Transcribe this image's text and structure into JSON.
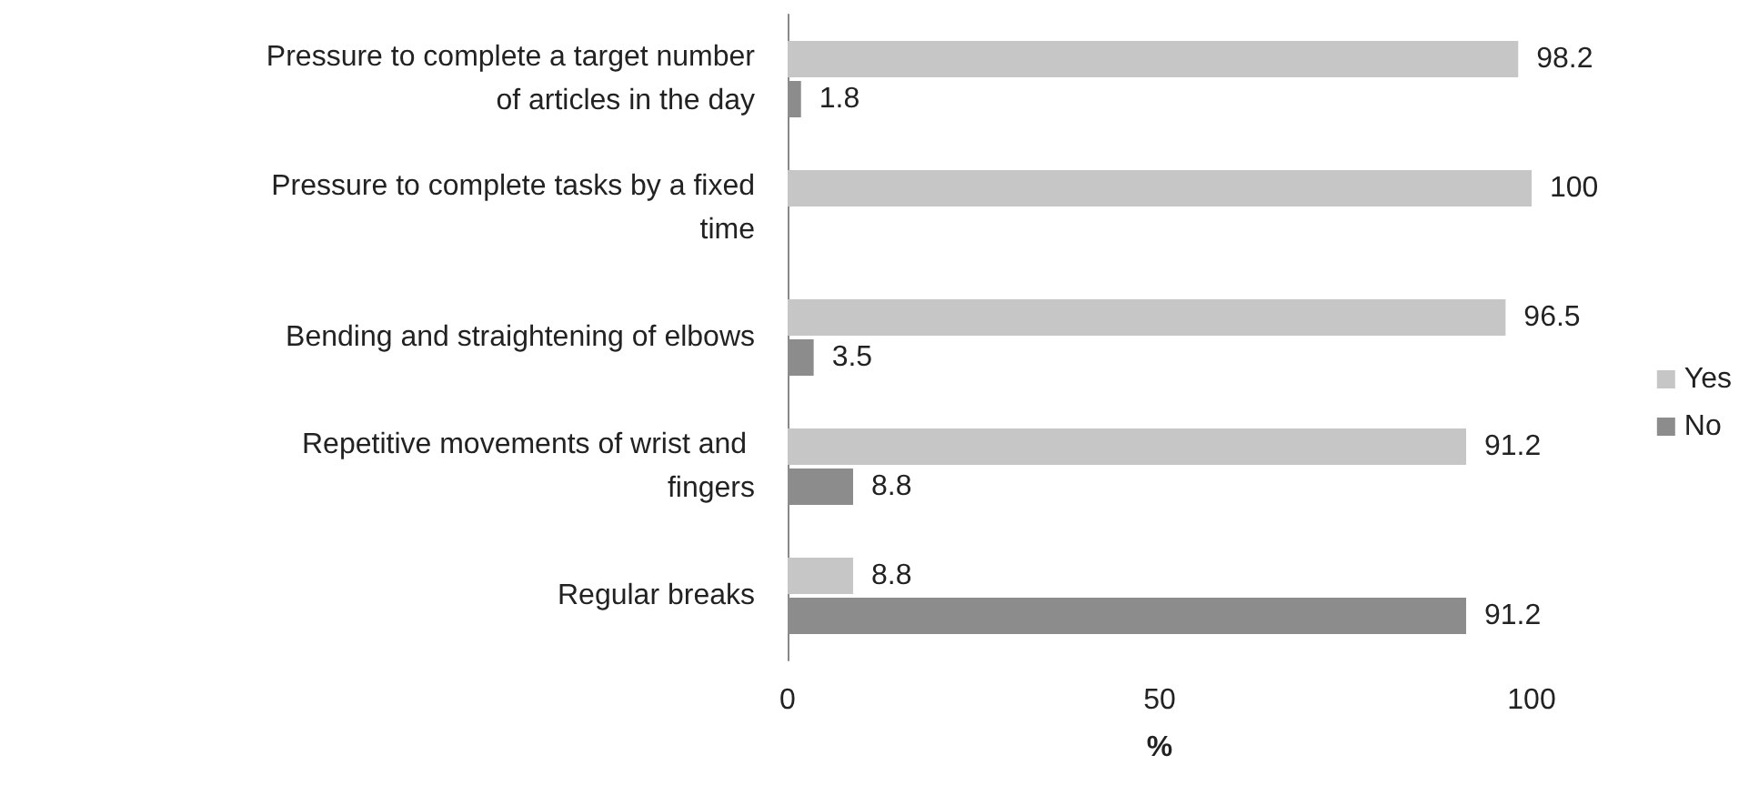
{
  "chart_data": {
    "type": "bar",
    "orientation": "horizontal",
    "xlabel": "%",
    "categories": [
      "Pressure to complete a target number of articles in the day",
      "Pressure to complete tasks by a fixed time",
      "Bending and straightening of elbows",
      "Repetitive movements of wrist and fingers",
      "Regular breaks"
    ],
    "series": [
      {
        "name": "Yes",
        "color": "#c6c6c6",
        "values": [
          98.2,
          100,
          96.5,
          91.2,
          8.8
        ]
      },
      {
        "name": "No",
        "color": "#8c8c8c",
        "values": [
          1.8,
          null,
          3.5,
          8.8,
          91.2
        ]
      }
    ],
    "xlim": [
      0,
      100
    ],
    "xticks": [
      0,
      50,
      100
    ],
    "grid": false,
    "legend": "right",
    "data_labels": true
  }
}
